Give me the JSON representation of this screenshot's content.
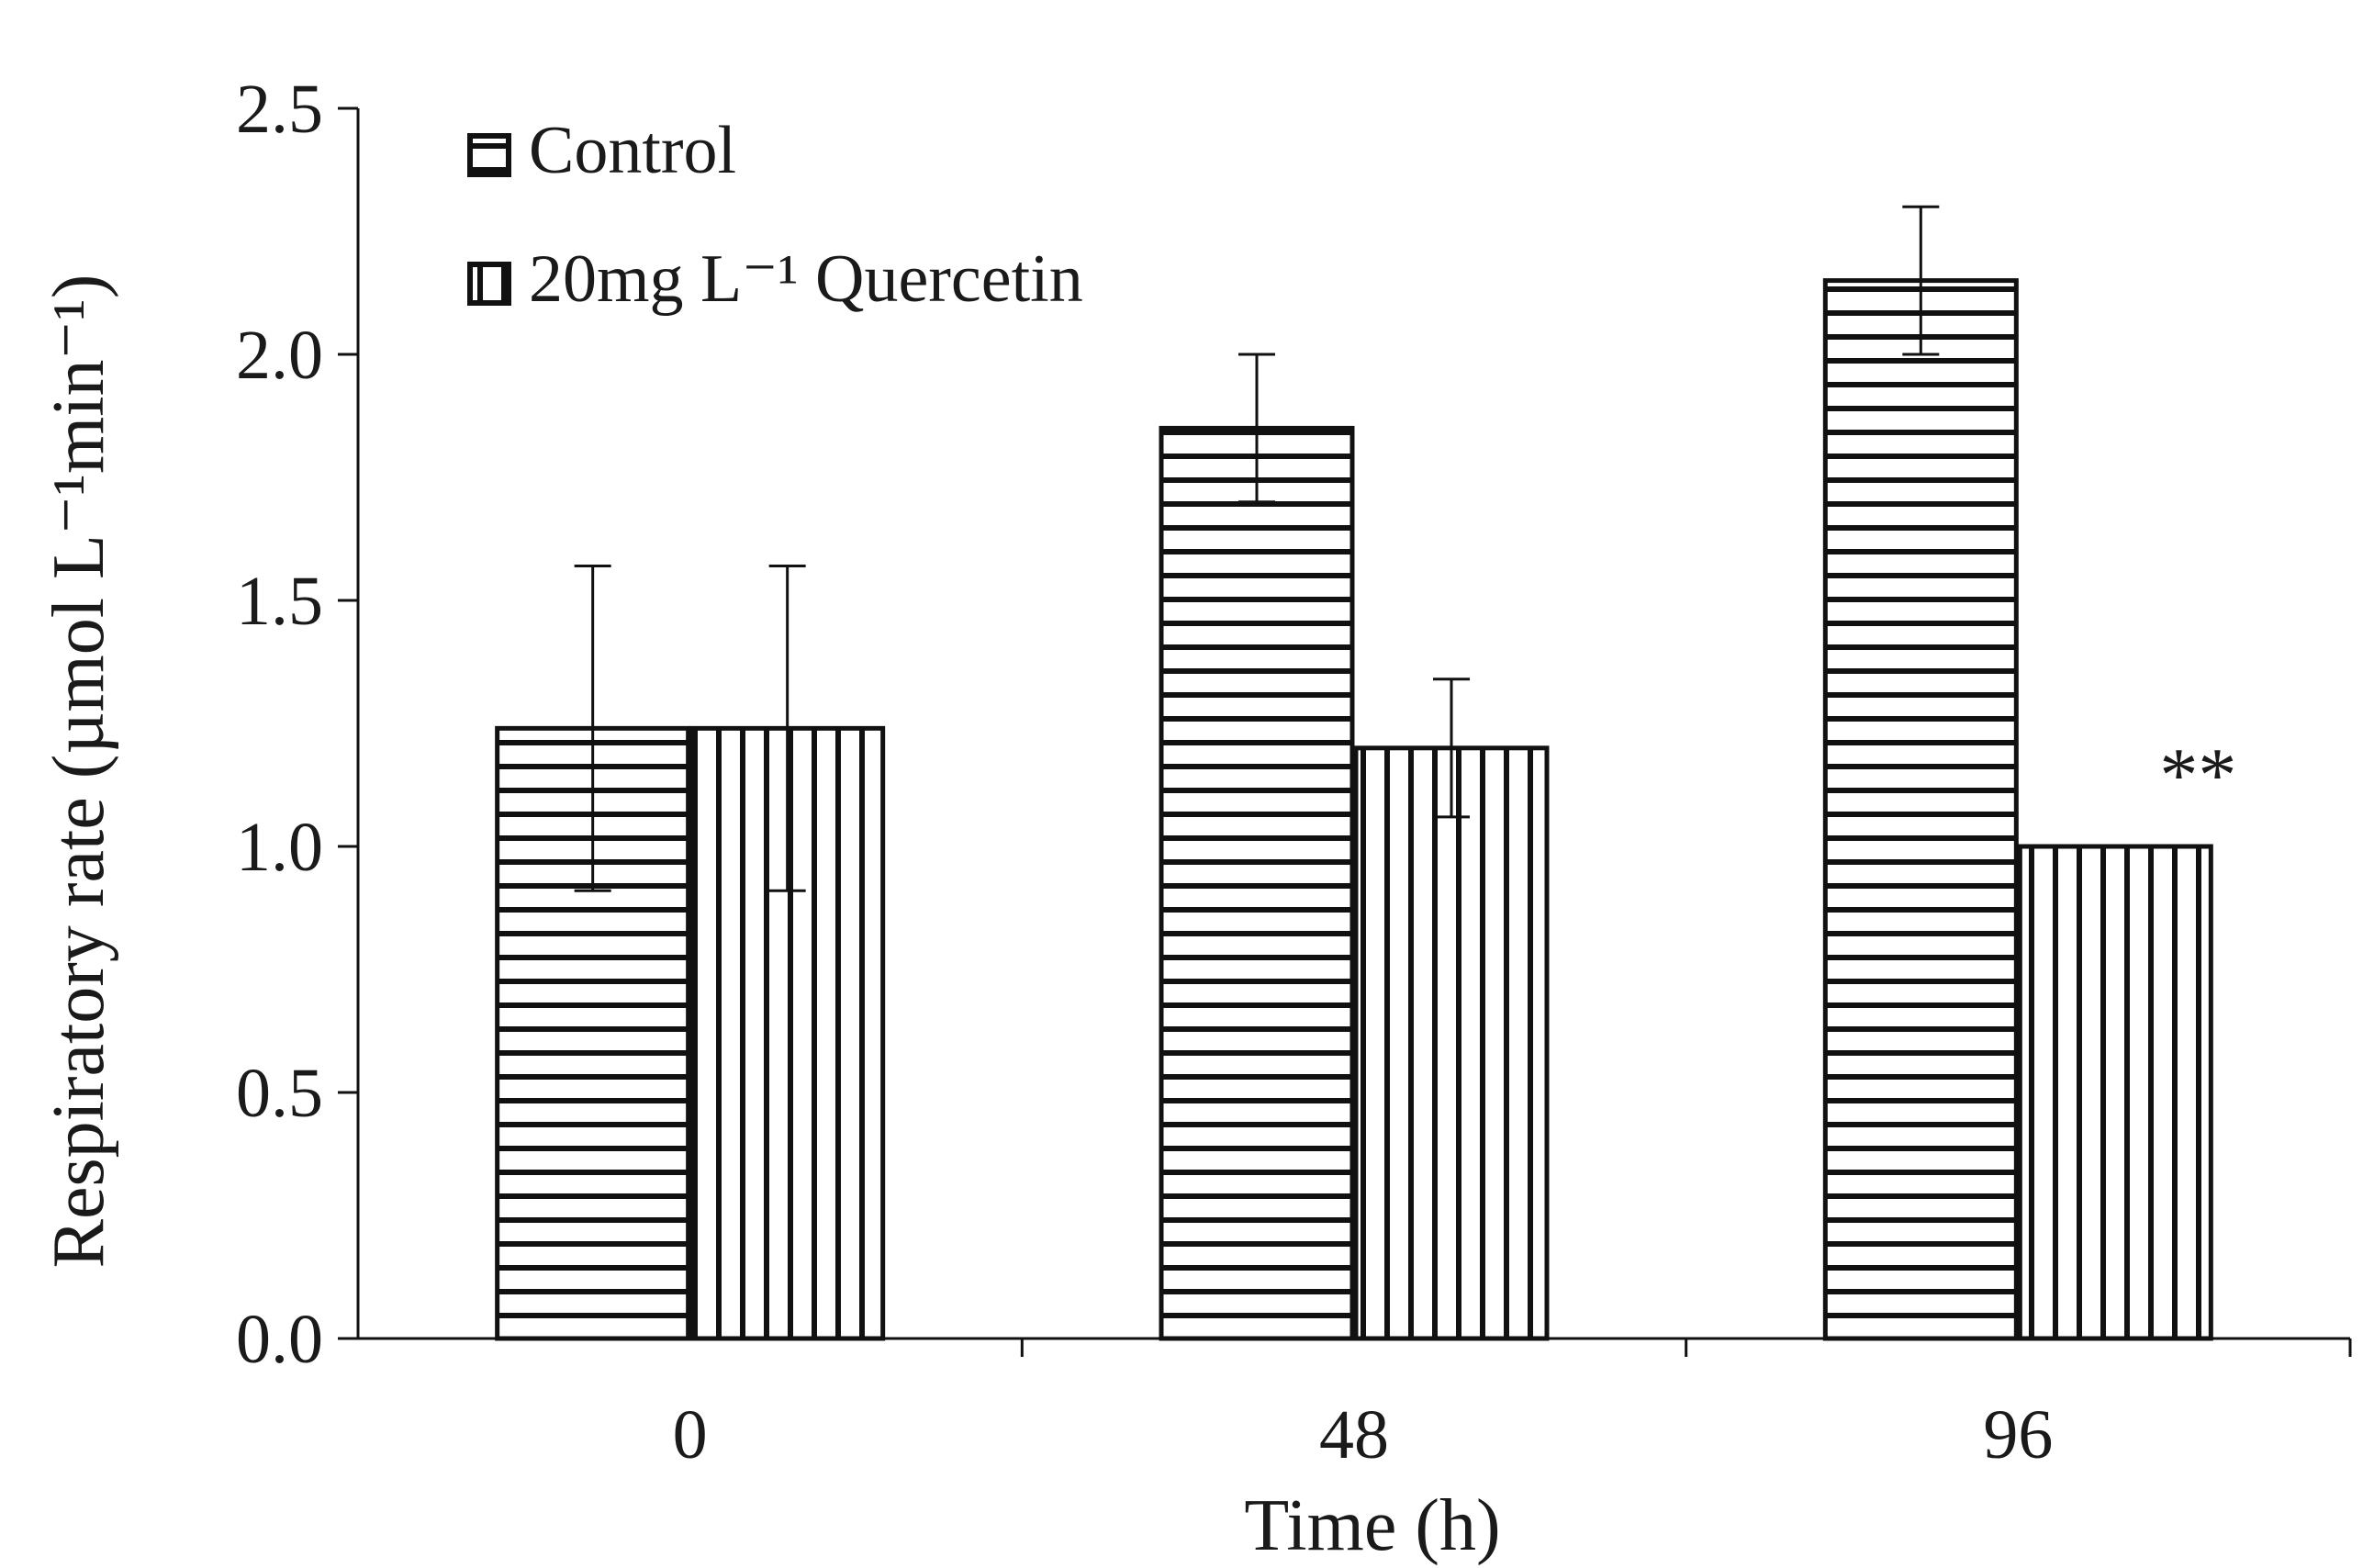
{
  "chart_data": {
    "type": "bar",
    "title": "",
    "xlabel": "Time (h)",
    "ylabel": "Respiratory rate (µmol L⁻¹min⁻¹)",
    "ylim": [
      0,
      2.5
    ],
    "yticks": [
      "0.0",
      "0.5",
      "1.0",
      "1.5",
      "2.0",
      "2.5"
    ],
    "categories": [
      "0",
      "48",
      "96"
    ],
    "grid": false,
    "legend_position": "top-left",
    "series": [
      {
        "name": "Control",
        "pattern": "horizontal-stripes",
        "values": [
          1.24,
          1.85,
          2.15
        ],
        "errors": [
          0.33,
          0.15,
          0.15
        ]
      },
      {
        "name": "20mg L⁻¹ Quercetin",
        "pattern": "vertical-stripes",
        "values": [
          1.24,
          1.2,
          1.0
        ],
        "errors": [
          0.33,
          0.14,
          0
        ]
      }
    ],
    "annotations": [
      {
        "text": "**",
        "series": 1,
        "category": 2
      }
    ],
    "colors": {
      "stroke": "#111111",
      "fill": "#ffffff",
      "text": "#1a1a1a"
    }
  }
}
